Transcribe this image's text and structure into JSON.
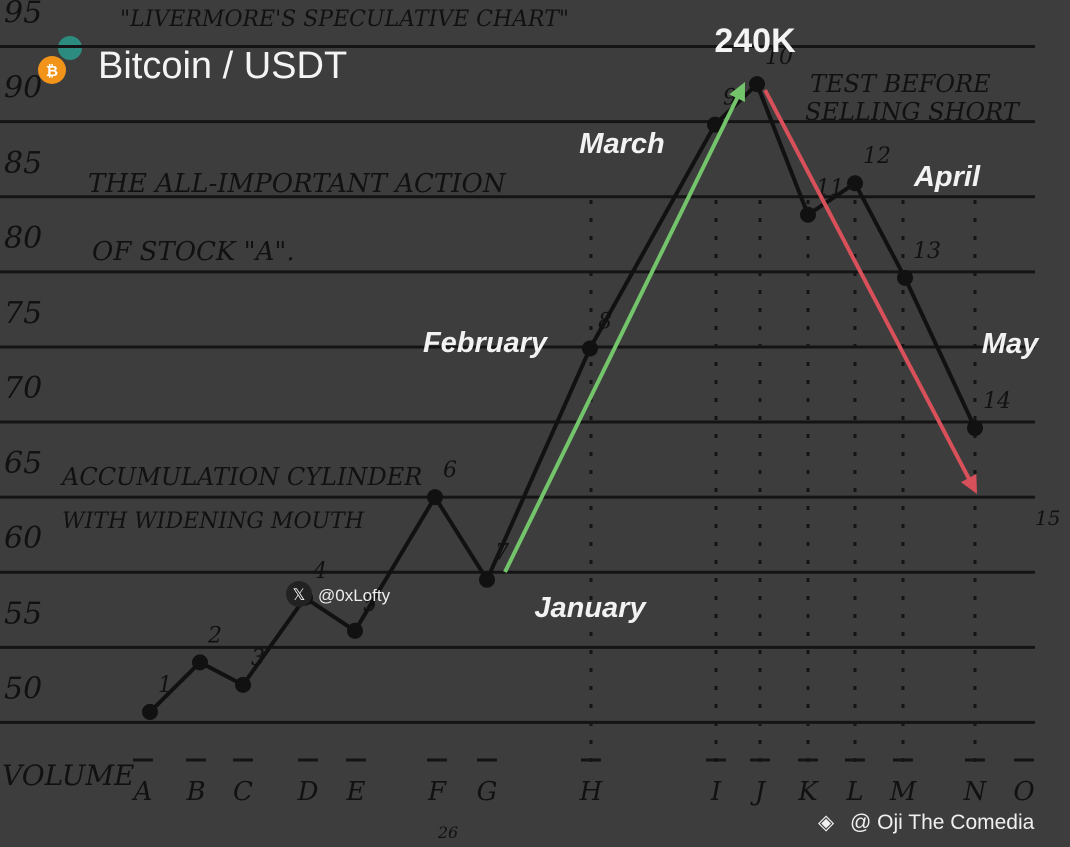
{
  "chart_data": {
    "type": "line",
    "title": "Bitcoin / USDT",
    "handwritten_title": "\"LIVERMORE'S SPECULATIVE CHART\"",
    "notes": [
      "TEST BEFORE",
      "SELLING SHORT",
      "THE ALL-IMPORTANT ACTION",
      "OF STOCK \"A\".",
      "ACCUMULATION CYLINDER",
      "WITH WIDENING MOUTH"
    ],
    "categories": [
      "1",
      "2",
      "3",
      "4",
      "5",
      "6",
      "7",
      "8",
      "9",
      "10",
      "11",
      "12",
      "13",
      "14"
    ],
    "values": [
      50.7,
      54,
      52.5,
      58.3,
      56.1,
      65,
      59.5,
      74.9,
      89.8,
      92.5,
      83.8,
      85.9,
      79.6,
      69.6
    ],
    "color": "#111111",
    "x_labels": [
      "A",
      "B",
      "C",
      "D",
      "E",
      "F",
      "G",
      "H",
      "I",
      "J",
      "K",
      "L",
      "M",
      "N",
      "O"
    ],
    "extra_point_label": "15",
    "volume_label": "VOLUME",
    "page_number": "26",
    "ylim": [
      46.3,
      98.1
    ],
    "yticks": [
      50,
      55,
      60,
      65,
      70,
      75,
      80,
      85,
      90,
      95
    ],
    "grid": true,
    "overlay": {
      "peak_label": "240K",
      "months": [
        "January",
        "February",
        "March",
        "April",
        "May"
      ],
      "watermark": "@0xLofty",
      "credit": "@ Oji The Comedia",
      "up_arrow_color": "#74c46c",
      "down_arrow_color": "#d8505a"
    }
  }
}
